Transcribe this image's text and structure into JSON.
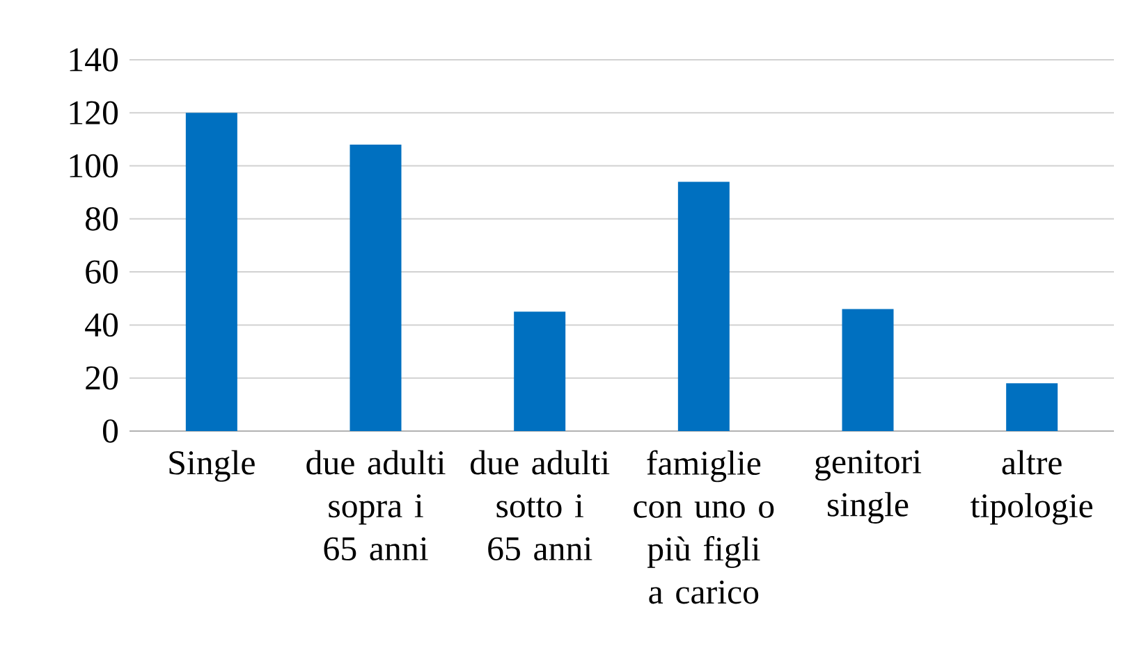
{
  "chart_data": {
    "type": "bar",
    "categories": [
      "Single",
      "due adulti sopra i 65 anni",
      "due adulti sotto i 65 anni",
      "famiglie con uno o più figli a carico",
      "genitori single",
      "altre tipologie"
    ],
    "values": [
      120,
      108,
      45,
      94,
      46,
      18
    ],
    "color": "#0070c0",
    "ylim": [
      0,
      140
    ],
    "yticks": [
      0,
      20,
      40,
      60,
      80,
      100,
      120,
      140
    ],
    "grid": "y"
  }
}
